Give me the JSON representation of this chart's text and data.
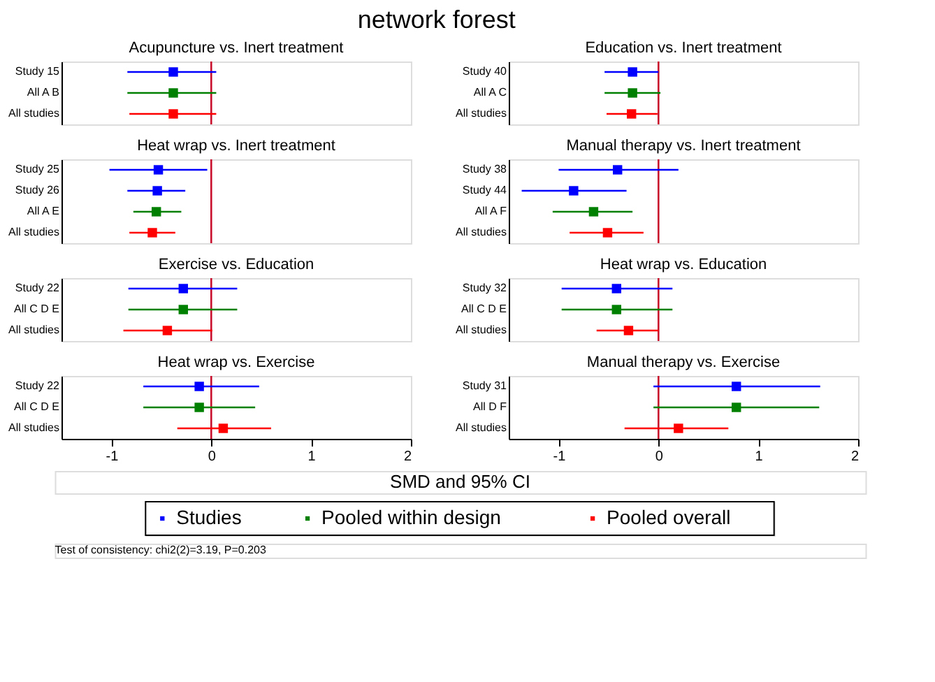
{
  "chart_data": [
    {
      "type": "scatter",
      "title": "Acupuncture vs. Inert treatment",
      "orientation": "horizontal",
      "categories": [
        "Study 15",
        "All A B",
        "All studies"
      ],
      "xlim": [
        -1.5,
        2
      ],
      "xticks": [
        -1,
        0,
        1,
        2
      ],
      "tick_labels": "y",
      "marker": "square",
      "legend": "bottom",
      "ref_lines": [
        {
          "axis": "x",
          "value": 0,
          "color": "#c8102e"
        }
      ],
      "series": [
        {
          "name": "Studies",
          "color": "#0000ff",
          "values": [
            -0.38,
            null,
            null
          ],
          "errors": [
            [
              -0.84,
              0.05
            ],
            null,
            null
          ]
        },
        {
          "name": "Pooled within design",
          "color": "#008000",
          "values": [
            null,
            -0.38,
            null
          ],
          "errors": [
            null,
            [
              -0.84,
              0.05
            ],
            null
          ]
        },
        {
          "name": "Pooled overall",
          "color": "#ff0000",
          "values": [
            null,
            null,
            -0.38
          ],
          "errors": [
            null,
            null,
            [
              -0.82,
              0.05
            ]
          ]
        }
      ]
    },
    {
      "type": "scatter",
      "title": "Heat wrap vs. Inert treatment",
      "orientation": "horizontal",
      "categories": [
        "Study 25",
        "Study 26",
        "All A E",
        "All studies"
      ],
      "xlim": [
        -1.5,
        2
      ],
      "xticks": [
        -1,
        0,
        1,
        2
      ],
      "tick_labels": "y",
      "marker": "square",
      "legend": "bottom",
      "ref_lines": [
        {
          "axis": "x",
          "value": 0,
          "color": "#c8102e"
        }
      ],
      "series": [
        {
          "name": "Studies",
          "color": "#0000ff",
          "values": [
            -0.53,
            -0.54,
            null,
            null
          ],
          "errors": [
            [
              -1.02,
              -0.04
            ],
            [
              -0.84,
              -0.26
            ],
            null,
            null
          ]
        },
        {
          "name": "Pooled within design",
          "color": "#008000",
          "values": [
            null,
            null,
            -0.55,
            null
          ],
          "errors": [
            null,
            null,
            [
              -0.78,
              -0.3
            ],
            null
          ]
        },
        {
          "name": "Pooled overall",
          "color": "#ff0000",
          "values": [
            null,
            null,
            null,
            -0.59
          ],
          "errors": [
            null,
            null,
            null,
            [
              -0.82,
              -0.36
            ]
          ]
        }
      ]
    },
    {
      "type": "scatter",
      "title": "Exercise vs. Education",
      "orientation": "horizontal",
      "categories": [
        "Study 22",
        "All C D E",
        "All studies"
      ],
      "xlim": [
        -1.5,
        2
      ],
      "xticks": [
        -1,
        0,
        1,
        2
      ],
      "tick_labels": "y",
      "marker": "square",
      "legend": "bottom",
      "ref_lines": [
        {
          "axis": "x",
          "value": 0,
          "color": "#c8102e"
        }
      ],
      "series": [
        {
          "name": "Studies",
          "color": "#0000ff",
          "values": [
            -0.28,
            null,
            null
          ],
          "errors": [
            [
              -0.83,
              0.26
            ],
            null,
            null
          ]
        },
        {
          "name": "Pooled within design",
          "color": "#008000",
          "values": [
            null,
            -0.28,
            null
          ],
          "errors": [
            null,
            [
              -0.83,
              0.26
            ],
            null
          ]
        },
        {
          "name": "Pooled overall",
          "color": "#ff0000",
          "values": [
            null,
            null,
            -0.44
          ],
          "errors": [
            null,
            null,
            [
              -0.88,
              0.01
            ]
          ]
        }
      ]
    },
    {
      "type": "scatter",
      "title": "Heat wrap vs. Exercise",
      "orientation": "horizontal",
      "categories": [
        "Study 22",
        "All C D E",
        "All studies"
      ],
      "xlim": [
        -1.5,
        2
      ],
      "xticks": [
        -1,
        0,
        1,
        2
      ],
      "marker": "square",
      "legend": "bottom",
      "ref_lines": [
        {
          "axis": "x",
          "value": 0,
          "color": "#c8102e"
        }
      ],
      "series": [
        {
          "name": "Studies",
          "color": "#0000ff",
          "values": [
            -0.12,
            null,
            null
          ],
          "errors": [
            [
              -0.68,
              0.48
            ],
            null,
            null
          ]
        },
        {
          "name": "Pooled within design",
          "color": "#008000",
          "values": [
            null,
            -0.12,
            null
          ],
          "errors": [
            null,
            [
              -0.68,
              0.44
            ],
            null
          ]
        },
        {
          "name": "Pooled overall",
          "color": "#ff0000",
          "values": [
            null,
            null,
            0.12
          ],
          "errors": [
            null,
            null,
            [
              -0.34,
              0.6
            ]
          ]
        }
      ]
    },
    {
      "type": "scatter",
      "title": "Education vs. Inert treatment",
      "orientation": "horizontal",
      "categories": [
        "Study 40",
        "All A C",
        "All studies"
      ],
      "xlim": [
        -1.5,
        2
      ],
      "xticks": [
        -1,
        0,
        1,
        2
      ],
      "tick_labels": "y",
      "marker": "square",
      "legend": "bottom",
      "ref_lines": [
        {
          "axis": "x",
          "value": 0,
          "color": "#c8102e"
        }
      ],
      "series": [
        {
          "name": "Studies",
          "color": "#0000ff",
          "values": [
            -0.26,
            null,
            null
          ],
          "errors": [
            [
              -0.54,
              0
            ],
            null,
            null
          ]
        },
        {
          "name": "Pooled within design",
          "color": "#008000",
          "values": [
            null,
            -0.26,
            null
          ],
          "errors": [
            null,
            [
              -0.54,
              0.02
            ],
            null
          ]
        },
        {
          "name": "Pooled overall",
          "color": "#ff0000",
          "values": [
            null,
            null,
            -0.27
          ],
          "errors": [
            null,
            null,
            [
              -0.52,
              -0.01
            ]
          ]
        }
      ]
    },
    {
      "type": "scatter",
      "title": "Manual therapy vs. Inert treatment",
      "orientation": "horizontal",
      "categories": [
        "Study 38",
        "Study 44",
        "All A F",
        "All studies"
      ],
      "xlim": [
        -1.5,
        2
      ],
      "xticks": [
        -1,
        0,
        1,
        2
      ],
      "tick_labels": "y",
      "marker": "square",
      "legend": "bottom",
      "ref_lines": [
        {
          "axis": "x",
          "value": 0,
          "color": "#c8102e"
        }
      ],
      "series": [
        {
          "name": "Studies",
          "color": "#0000ff",
          "values": [
            -0.41,
            -0.85,
            null,
            null
          ],
          "errors": [
            [
              -1.0,
              0.2
            ],
            [
              -1.37,
              -0.32
            ],
            null,
            null
          ]
        },
        {
          "name": "Pooled within design",
          "color": "#008000",
          "values": [
            null,
            null,
            -0.65,
            null
          ],
          "errors": [
            null,
            null,
            [
              -1.06,
              -0.26
            ],
            null
          ]
        },
        {
          "name": "Pooled overall",
          "color": "#ff0000",
          "values": [
            null,
            null,
            null,
            -0.51
          ],
          "errors": [
            null,
            null,
            null,
            [
              -0.89,
              -0.15
            ]
          ]
        }
      ]
    },
    {
      "type": "scatter",
      "title": "Heat wrap vs. Education",
      "orientation": "horizontal",
      "categories": [
        "Study 32",
        "All C D E",
        "All studies"
      ],
      "xlim": [
        -1.5,
        2
      ],
      "xticks": [
        -1,
        0,
        1,
        2
      ],
      "tick_labels": "y",
      "marker": "square",
      "legend": "bottom",
      "ref_lines": [
        {
          "axis": "x",
          "value": 0,
          "color": "#c8102e"
        }
      ],
      "series": [
        {
          "name": "Studies",
          "color": "#0000ff",
          "values": [
            -0.42,
            null,
            null
          ],
          "errors": [
            [
              -0.97,
              0.14
            ],
            null,
            null
          ]
        },
        {
          "name": "Pooled within design",
          "color": "#008000",
          "values": [
            null,
            -0.42,
            null
          ],
          "errors": [
            null,
            [
              -0.97,
              0.14
            ],
            null
          ]
        },
        {
          "name": "Pooled overall",
          "color": "#ff0000",
          "values": [
            null,
            null,
            -0.3
          ],
          "errors": [
            null,
            null,
            [
              -0.62,
              0
            ]
          ]
        }
      ]
    },
    {
      "type": "scatter",
      "title": "Manual therapy vs. Exercise",
      "orientation": "horizontal",
      "categories": [
        "Study 31",
        "All D F",
        "All studies"
      ],
      "xlim": [
        -1.5,
        2
      ],
      "xticks": [
        -1,
        0,
        1,
        2
      ],
      "marker": "square",
      "legend": "bottom",
      "ref_lines": [
        {
          "axis": "x",
          "value": 0,
          "color": "#c8102e"
        }
      ],
      "series": [
        {
          "name": "Studies",
          "color": "#0000ff",
          "values": [
            0.78,
            null,
            null
          ],
          "errors": [
            [
              -0.05,
              1.62
            ],
            null,
            null
          ]
        },
        {
          "name": "Pooled within design",
          "color": "#008000",
          "values": [
            null,
            0.78,
            null
          ],
          "errors": [
            null,
            [
              -0.05,
              1.61
            ],
            null
          ]
        },
        {
          "name": "Pooled overall",
          "color": "#ff0000",
          "values": [
            null,
            null,
            0.2
          ],
          "errors": [
            null,
            null,
            [
              -0.34,
              0.7
            ]
          ]
        }
      ]
    },
    {
      "type": "other",
      "title": "network forest",
      "xlabel": "SMD and 95% CI",
      "annotations": [
        "Test of consistency: chi2(2)=3.19, P=0.203"
      ]
    }
  ]
}
